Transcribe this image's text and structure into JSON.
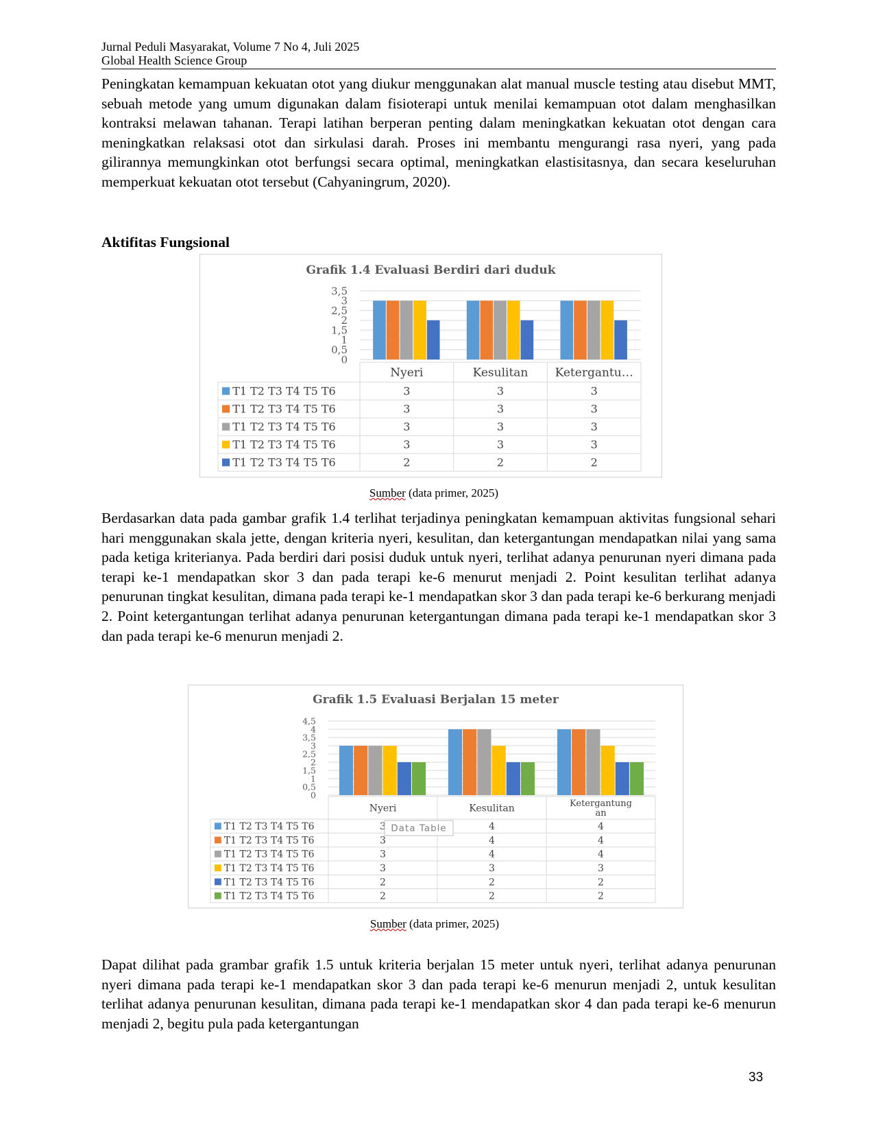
{
  "header": {
    "journal": "Jurnal Peduli Masyarakat, Volume 7 No 4, Juli 2025",
    "publisher": "Global Health Science Group"
  },
  "paragraphs": {
    "p1": "Peningkatan kemampuan kekuatan otot yang diukur menggunakan alat manual muscle testing atau disebut MMT, sebuah metode yang umum digunakan dalam fisioterapi untuk menilai kemampuan otot dalam menghasilkan kontraksi melawan tahanan. Terapi latihan berperan penting dalam meningkatkan kekuatan otot dengan cara meningkatkan relaksasi otot dan sirkulasi darah. Proses ini membantu mengurangi rasa nyeri, yang pada gilirannya memungkinkan otot berfungsi secara optimal, meningkatkan elastisitasnya, dan secara keseluruhan memperkuat kekuatan otot tersebut (Cahyaningrum, 2020).",
    "heading": "Aktifitas Fungsional",
    "p2": "Berdasarkan data pada gambar grafik 1.4 terlihat  terjadinya peningkatan kemampuan aktivitas fungsional sehari hari menggunakan skala jette, dengan kriteria nyeri, kesulitan, dan ketergantungan mendapatkan nilai yang sama pada ketiga kriterianya. Pada berdiri dari posisi duduk untuk nyeri, terlihat adanya penurunan nyeri dimana pada  terapi ke-1 mendapatkan skor 3 dan pada terapi ke-6 menurut menjadi 2. Point kesulitan terlihat adanya penurunan tingkat kesulitan, dimana pada  terapi ke-1 mendapatkan skor 3 dan pada terapi ke-6 berkurang menjadi 2. Point ketergantungan terlihat adanya penurunan ketergantungan dimana pada  terapi ke-1 mendapatkan skor 3 dan pada terapi ke-6 menurun menjadi 2.",
    "p3": "Dapat dilihat pada grambar grafik 1.5 untuk kriteria berjalan 15 meter untuk nyeri, terlihat adanya penurunan nyeri dimana pada  terapi ke-1 mendapatkan skor 3 dan pada terapi ke-6 menurun menjadi 2, untuk kesulitan terlihat adanya penurunan kesulitan, dimana pada  terapi ke-1 mendapatkan skor 4 dan pada terapi ke-6 menurun menjadi 2, begitu pula pada ketergantungan"
  },
  "captions": {
    "c1": {
      "word": "Sumber",
      "rest": " (data primer, 2025)"
    },
    "c2": {
      "word": "Sumber",
      "rest": " (data primer, 2025)"
    }
  },
  "page_number": "33",
  "chart_data": [
    {
      "type": "bar",
      "title": "Grafik 1.4  Evaluasi Berdiri dari duduk",
      "categories": [
        "Nyeri",
        "Kesulitan",
        "Ketergantu…"
      ],
      "y_ticks": [
        "0",
        "0,5",
        "1",
        "1,5",
        "2",
        "2,5",
        "3",
        "3,5"
      ],
      "ylim": [
        0,
        3.5
      ],
      "grid": true,
      "legend": "data-table",
      "series": [
        {
          "name": "T1 T2 T3 T4 T5 T6",
          "color": "#5B9BD5",
          "values": [
            3,
            3,
            3
          ]
        },
        {
          "name": "T1 T2 T3 T4 T5 T6",
          "color": "#ED7D31",
          "values": [
            3,
            3,
            3
          ]
        },
        {
          "name": "T1 T2 T3 T4 T5 T6",
          "color": "#A5A5A5",
          "values": [
            3,
            3,
            3
          ]
        },
        {
          "name": "T1 T2 T3 T4 T5 T6",
          "color": "#FFC000",
          "values": [
            3,
            3,
            3
          ]
        },
        {
          "name": "T1 T2 T3 T4 T5 T6",
          "color": "#4472C4",
          "values": [
            2,
            2,
            2
          ]
        }
      ]
    },
    {
      "type": "bar",
      "title": "Grafik 1.5  Evaluasi Berjalan 15 meter",
      "categories": [
        "Nyeri",
        "Kesulitan",
        "Ketergantung an"
      ],
      "y_ticks": [
        "0",
        "0,5",
        "1",
        "1,5",
        "2",
        "2,5",
        "3",
        "3,5",
        "4",
        "4,5"
      ],
      "ylim": [
        0,
        4.5
      ],
      "grid": true,
      "legend": "data-table",
      "tooltip": "Data Table",
      "series": [
        {
          "name": "T1 T2 T3 T4 T5 T6",
          "color": "#5B9BD5",
          "values": [
            3,
            4,
            4
          ]
        },
        {
          "name": "T1 T2 T3 T4 T5 T6",
          "color": "#ED7D31",
          "values": [
            3,
            4,
            4
          ]
        },
        {
          "name": "T1 T2 T3 T4 T5 T6",
          "color": "#A5A5A5",
          "values": [
            3,
            4,
            4
          ]
        },
        {
          "name": "T1 T2 T3 T4 T5 T6",
          "color": "#FFC000",
          "values": [
            3,
            3,
            3
          ]
        },
        {
          "name": "T1 T2 T3 T4 T5 T6",
          "color": "#4472C4",
          "values": [
            2,
            2,
            2
          ]
        },
        {
          "name": "T1 T2 T3 T4 T5 T6",
          "color": "#70AD47",
          "values": [
            2,
            2,
            2
          ]
        }
      ]
    }
  ]
}
